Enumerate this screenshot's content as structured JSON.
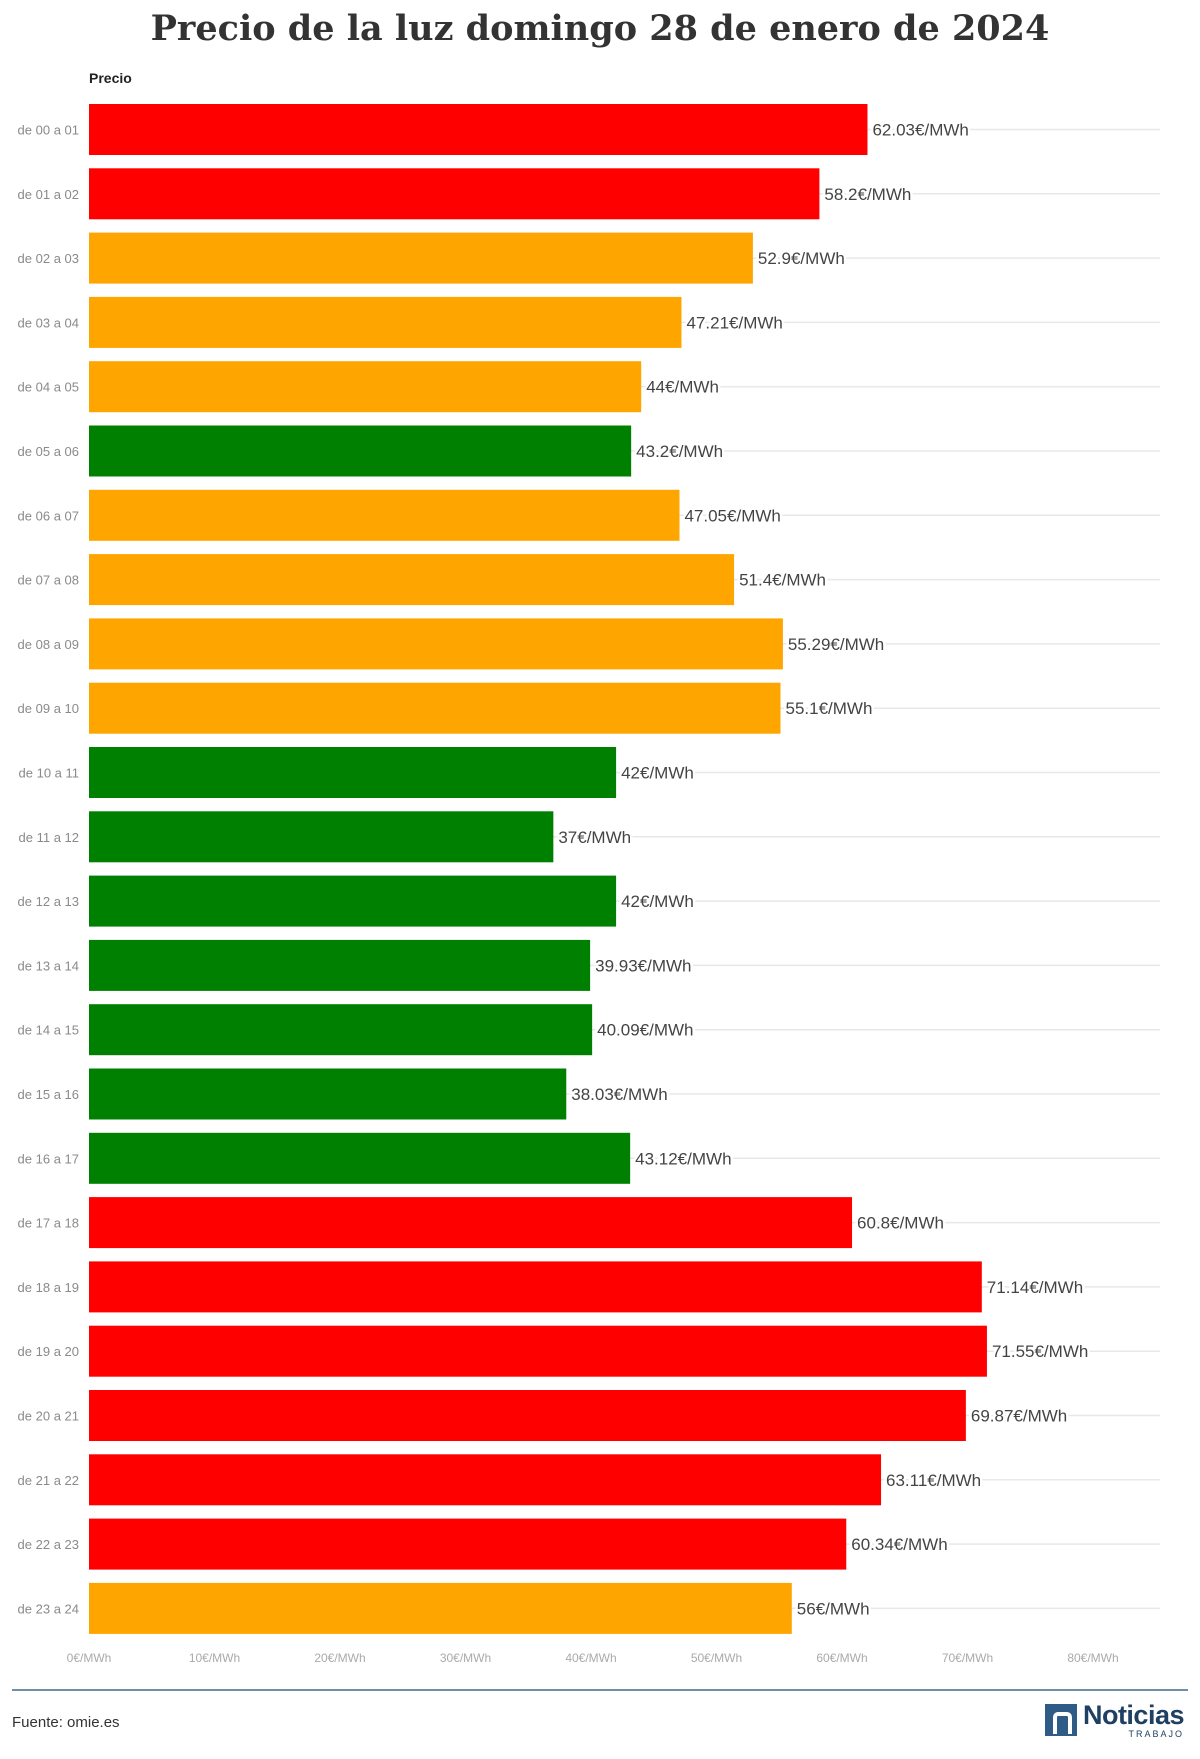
{
  "chart_data": {
    "type": "bar",
    "orientation": "horizontal",
    "title": "Precio de la luz domingo 28 de enero de 2024",
    "series_title": "Precio",
    "categories": [
      "de 00 a 01",
      "de 01 a 02",
      "de 02 a 03",
      "de 03 a 04",
      "de 04 a 05",
      "de 05 a 06",
      "de 06 a 07",
      "de 07 a 08",
      "de 08 a 09",
      "de 09 a 10",
      "de 10 a 11",
      "de 11 a 12",
      "de 12 a 13",
      "de 13 a 14",
      "de 14 a 15",
      "de 15 a 16",
      "de 16 a 17",
      "de 17 a 18",
      "de 18 a 19",
      "de 19 a 20",
      "de 20 a 21",
      "de 21 a 22",
      "de 22 a 23",
      "de 23 a 24"
    ],
    "values": [
      62.03,
      58.2,
      52.9,
      47.21,
      44,
      43.2,
      47.05,
      51.4,
      55.29,
      55.1,
      42,
      37,
      42,
      39.93,
      40.09,
      38.03,
      43.12,
      60.8,
      71.14,
      71.55,
      69.87,
      63.11,
      60.34,
      56
    ],
    "value_labels": [
      "62.03€/MWh",
      "58.2€/MWh",
      "52.9€/MWh",
      "47.21€/MWh",
      "44€/MWh",
      "43.2€/MWh",
      "47.05€/MWh",
      "51.4€/MWh",
      "55.29€/MWh",
      "55.1€/MWh",
      "42€/MWh",
      "37€/MWh",
      "42€/MWh",
      "39.93€/MWh",
      "40.09€/MWh",
      "38.03€/MWh",
      "43.12€/MWh",
      "60.8€/MWh",
      "71.14€/MWh",
      "71.55€/MWh",
      "69.87€/MWh",
      "63.11€/MWh",
      "60.34€/MWh",
      "56€/MWh"
    ],
    "bar_colors": [
      "#ff0000",
      "#ff0000",
      "#ffa500",
      "#ffa500",
      "#ffa500",
      "#008000",
      "#ffa500",
      "#ffa500",
      "#ffa500",
      "#ffa500",
      "#008000",
      "#008000",
      "#008000",
      "#008000",
      "#008000",
      "#008000",
      "#008000",
      "#ff0000",
      "#ff0000",
      "#ff0000",
      "#ff0000",
      "#ff0000",
      "#ff0000",
      "#ffa500"
    ],
    "x_ticks": [
      0,
      10,
      20,
      30,
      40,
      50,
      60,
      70,
      80
    ],
    "x_tick_labels": [
      "0€/MWh",
      "10€/MWh",
      "20€/MWh",
      "30€/MWh",
      "40€/MWh",
      "50€/MWh",
      "60€/MWh",
      "70€/MWh",
      "80€/MWh"
    ],
    "xlim": [
      0,
      85
    ],
    "grid": true
  },
  "footer": {
    "source": "Fuente: omie.es",
    "brand_name": "Noticias",
    "brand_sub": "TRABAJO"
  }
}
